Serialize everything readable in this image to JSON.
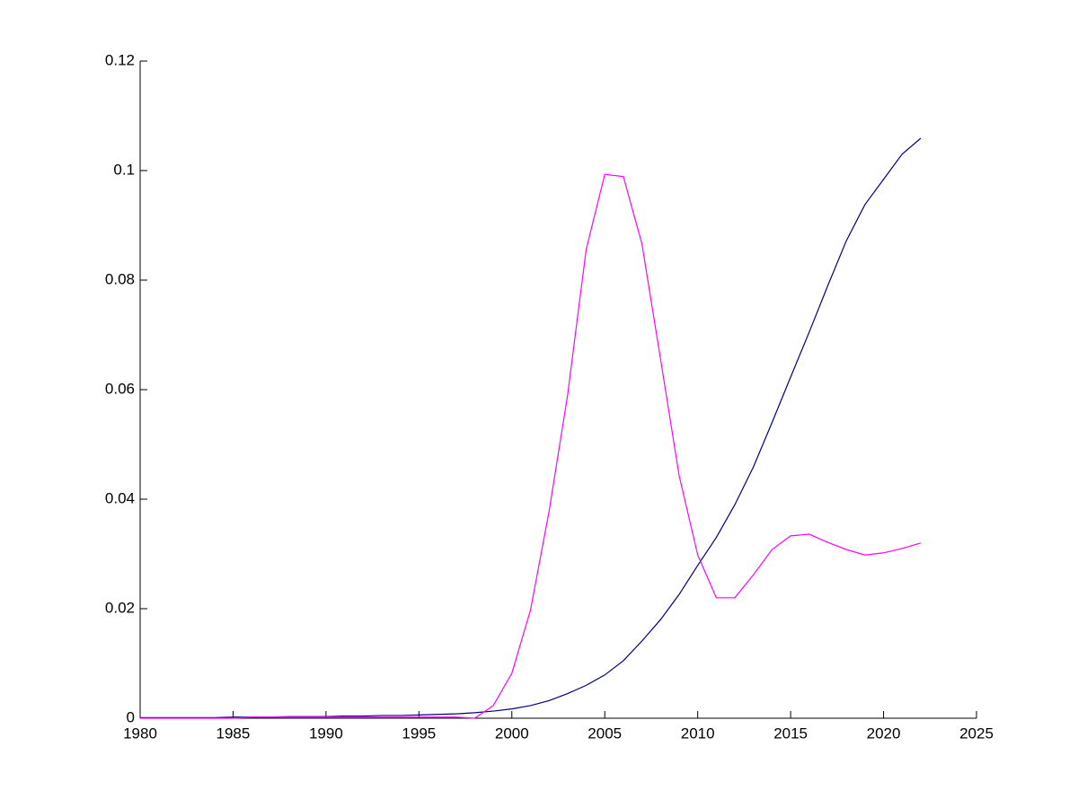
{
  "chart_data": {
    "type": "line",
    "x": [
      1980,
      1981,
      1982,
      1983,
      1984,
      1985,
      1986,
      1987,
      1988,
      1989,
      1990,
      1991,
      1992,
      1993,
      1994,
      1995,
      1996,
      1997,
      1998,
      1999,
      2000,
      2001,
      2002,
      2003,
      2004,
      2005,
      2006,
      2007,
      2008,
      2009,
      2010,
      2011,
      2012,
      2013,
      2014,
      2015,
      2016,
      2017,
      2018,
      2019,
      2020,
      2021,
      2022
    ],
    "series": [
      {
        "color": "#00007f",
        "values": [
          0.0001,
          0.0001,
          0.0001,
          0.0001,
          0.0001,
          0.0002,
          0.0002,
          0.0002,
          0.0003,
          0.0003,
          0.0003,
          0.0004,
          0.0004,
          0.0005,
          0.0005,
          0.0006,
          0.0007,
          0.0008,
          0.001,
          0.0013,
          0.0017,
          0.0023,
          0.0032,
          0.0045,
          0.006,
          0.0079,
          0.0105,
          0.0141,
          0.018,
          0.0226,
          0.0279,
          0.033,
          0.039,
          0.0459,
          0.054,
          0.0623,
          0.0705,
          0.079,
          0.0872,
          0.0938,
          0.0984,
          0.103,
          0.1059
        ]
      },
      {
        "color": "#ff00ff",
        "values": [
          0,
          0,
          0,
          0,
          0,
          0,
          0.0002,
          0.0002,
          0.0002,
          0.0002,
          0.0002,
          0.0002,
          0.0002,
          0.0002,
          0.0002,
          0.0002,
          0.0002,
          0.0002,
          0,
          0.0023,
          0.0082,
          0.0197,
          0.0377,
          0.059,
          0.0856,
          0.0993,
          0.0989,
          0.0866,
          0.0656,
          0.0443,
          0.0298,
          0.022,
          0.022,
          0.0262,
          0.0308,
          0.0333,
          0.0336,
          0.0321,
          0.0308,
          0.0298,
          0.0302,
          0.031,
          0.032
        ]
      }
    ],
    "xlim": [
      1980,
      2025
    ],
    "xticks": [
      1980,
      1985,
      1990,
      1995,
      2000,
      2005,
      2010,
      2015,
      2020,
      2025
    ],
    "ylim": [
      0,
      0.12
    ],
    "yticks": [
      0,
      0.02,
      0.04,
      0.06,
      0.08,
      0.1,
      0.12
    ],
    "grid": false
  }
}
